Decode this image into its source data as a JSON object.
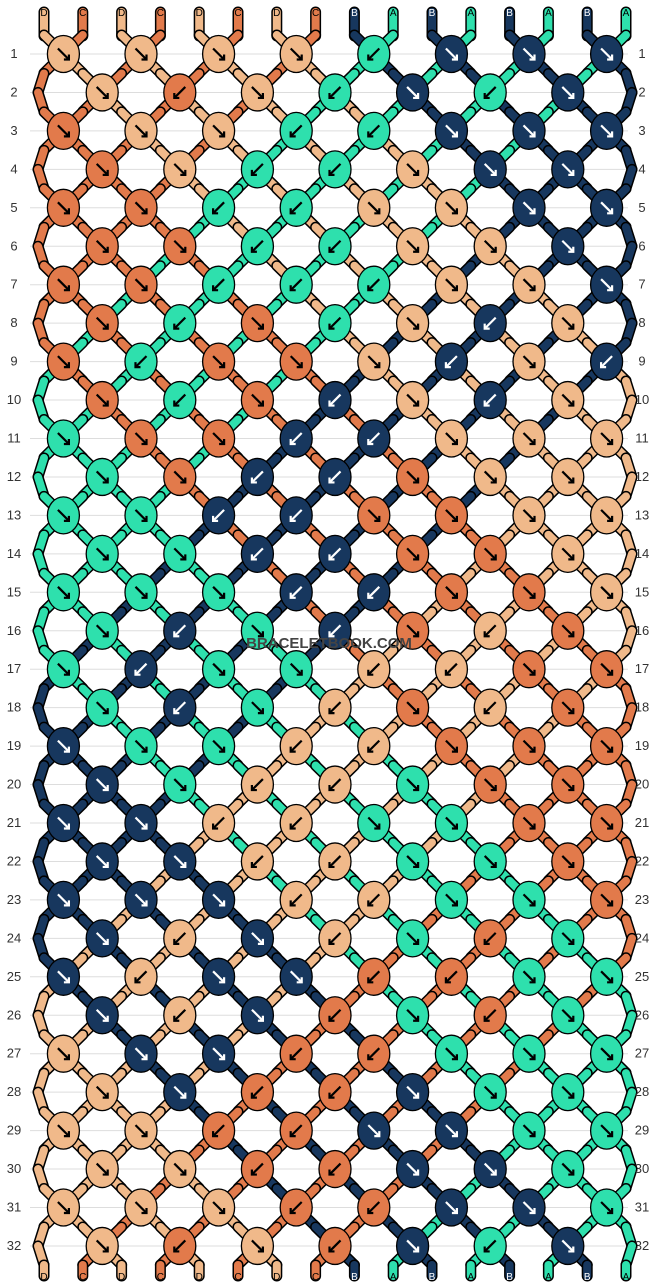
{
  "colors": {
    "peach": "#f0b98a",
    "orange": "#e27a4b",
    "navy": "#17375e",
    "mint": "#2ee0ad",
    "outline": "#000000",
    "gridline": "#dddddd"
  },
  "strands": [
    {
      "letter": "D",
      "color": "peach"
    },
    {
      "letter": "C",
      "color": "orange"
    },
    {
      "letter": "D",
      "color": "peach"
    },
    {
      "letter": "C",
      "color": "orange"
    },
    {
      "letter": "D",
      "color": "peach"
    },
    {
      "letter": "C",
      "color": "orange"
    },
    {
      "letter": "D",
      "color": "peach"
    },
    {
      "letter": "C",
      "color": "orange"
    },
    {
      "letter": "B",
      "color": "navy"
    },
    {
      "letter": "A",
      "color": "mint"
    },
    {
      "letter": "B",
      "color": "navy"
    },
    {
      "letter": "A",
      "color": "mint"
    },
    {
      "letter": "B",
      "color": "navy"
    },
    {
      "letter": "A",
      "color": "mint"
    },
    {
      "letter": "B",
      "color": "navy"
    },
    {
      "letter": "A",
      "color": "mint"
    }
  ],
  "row_numbers": [
    "1",
    "2",
    "3",
    "4",
    "5",
    "6",
    "7",
    "8",
    "9",
    "10",
    "11",
    "12",
    "13",
    "14",
    "15",
    "16",
    "17",
    "18",
    "19",
    "20",
    "21",
    "22",
    "23",
    "24",
    "25",
    "26",
    "27",
    "28",
    "29",
    "30",
    "31",
    "32"
  ],
  "watermark": "BRACELETBOOK.COM",
  "knots": [
    [
      "R",
      "R",
      "R",
      "R",
      "L",
      "R",
      "R",
      "R"
    ],
    [
      "R",
      "L",
      "R",
      "L",
      "R",
      "L",
      "R"
    ],
    [
      "R",
      "R",
      "R",
      "L",
      "L",
      "R",
      "R",
      "R"
    ],
    [
      "R",
      "R",
      "L",
      "L",
      "R",
      "R",
      "R"
    ],
    [
      "R",
      "R",
      "L",
      "L",
      "R",
      "R",
      "R",
      "R"
    ],
    [
      "R",
      "R",
      "L",
      "L",
      "R",
      "R",
      "R"
    ],
    [
      "R",
      "R",
      "L",
      "L",
      "L",
      "R",
      "R",
      "R"
    ],
    [
      "R",
      "L",
      "R",
      "L",
      "R",
      "L",
      "R"
    ],
    [
      "R",
      "L",
      "R",
      "R",
      "R",
      "L",
      "R",
      "L"
    ],
    [
      "R",
      "L",
      "R",
      "L",
      "R",
      "L",
      "R"
    ],
    [
      "R",
      "R",
      "R",
      "L",
      "L",
      "R",
      "R",
      "R"
    ],
    [
      "R",
      "R",
      "L",
      "L",
      "R",
      "R",
      "R"
    ],
    [
      "R",
      "R",
      "L",
      "L",
      "R",
      "R",
      "R",
      "R"
    ],
    [
      "R",
      "R",
      "L",
      "L",
      "R",
      "R",
      "R"
    ],
    [
      "R",
      "R",
      "R",
      "L",
      "L",
      "R",
      "R",
      "R"
    ],
    [
      "R",
      "L",
      "R",
      "L",
      "R",
      "L",
      "R"
    ],
    [
      "R",
      "L",
      "R",
      "R",
      "L",
      "L",
      "R",
      "R"
    ],
    [
      "R",
      "L",
      "R",
      "L",
      "R",
      "L",
      "R"
    ],
    [
      "R",
      "R",
      "R",
      "L",
      "L",
      "R",
      "R",
      "R"
    ],
    [
      "R",
      "R",
      "L",
      "L",
      "R",
      "R",
      "R"
    ],
    [
      "R",
      "R",
      "L",
      "L",
      "R",
      "R",
      "R",
      "R"
    ],
    [
      "R",
      "R",
      "L",
      "L",
      "R",
      "R",
      "R"
    ],
    [
      "R",
      "R",
      "R",
      "L",
      "L",
      "R",
      "R",
      "R"
    ],
    [
      "R",
      "L",
      "R",
      "L",
      "R",
      "L",
      "R"
    ],
    [
      "R",
      "L",
      "R",
      "R",
      "L",
      "L",
      "R",
      "R"
    ],
    [
      "R",
      "L",
      "R",
      "L",
      "R",
      "L",
      "R"
    ],
    [
      "R",
      "R",
      "R",
      "L",
      "L",
      "R",
      "R",
      "R"
    ],
    [
      "R",
      "R",
      "L",
      "L",
      "R",
      "R",
      "R"
    ],
    [
      "R",
      "R",
      "L",
      "L",
      "R",
      "R",
      "R",
      "R"
    ],
    [
      "R",
      "R",
      "L",
      "L",
      "R",
      "R",
      "R"
    ],
    [
      "R",
      "R",
      "R",
      "L",
      "L",
      "R",
      "R",
      "R"
    ],
    [
      "R",
      "L",
      "R",
      "L",
      "R",
      "L",
      "R"
    ]
  ]
}
